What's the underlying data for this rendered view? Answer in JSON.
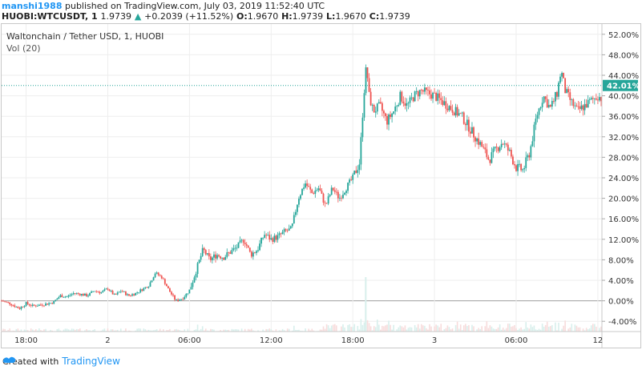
{
  "header": {
    "user": "manshi1988",
    "published": "published on TradingView.com, July 03, 2019 11:52:40 UTC",
    "symbol": "HUOBI:WTCUSDT, 1",
    "price": "1.9739",
    "change": "+0.2039 (+11.52%)",
    "o_label": "O:",
    "o_val": "1.9670",
    "h_label": "H:",
    "h_val": "1.9739",
    "l_label": "L:",
    "l_val": "1.9670",
    "c_label": "C:",
    "c_val": "1.9739"
  },
  "footer": {
    "created": "Created with",
    "brand": "TradingView"
  },
  "colors": {
    "up": "#26a69a",
    "down": "#ef5350",
    "accent": "#26a69a",
    "grid": "#eeeeee",
    "brand": "#2196f3"
  },
  "chart_data": {
    "type": "candlestick",
    "title": "Waltonchain / Tether USD, 1, HUOBI",
    "indicator": "Vol (20)",
    "y_unit": "percent",
    "ylim": [
      -6,
      54
    ],
    "y_ticks": [
      "52.00%",
      "48.00%",
      "44.00%",
      "40.00%",
      "36.00%",
      "32.00%",
      "28.00%",
      "24.00%",
      "20.00%",
      "16.00%",
      "12.00%",
      "8.00%",
      "4.00%",
      "0.00%",
      "-4.00%"
    ],
    "y_tick_values": [
      52,
      48,
      44,
      40,
      36,
      32,
      28,
      24,
      20,
      16,
      12,
      8,
      4,
      0,
      -4
    ],
    "x_ticks": [
      "18:00",
      "2",
      "06:00",
      "12:00",
      "18:00",
      "3",
      "06:00",
      "12"
    ],
    "x_tick_hours": [
      18,
      24,
      30,
      36,
      42,
      48,
      54,
      60
    ],
    "x_range_hours": [
      16.2,
      60.3
    ],
    "last_value": 42.01,
    "last_label": "42.01%",
    "price_path": [
      [
        16.2,
        0.0
      ],
      [
        16.8,
        -0.5
      ],
      [
        17.5,
        -1.5
      ],
      [
        18.0,
        -0.5
      ],
      [
        18.5,
        -1.0
      ],
      [
        19.0,
        -0.8
      ],
      [
        19.5,
        -0.6
      ],
      [
        20.0,
        -0.3
      ],
      [
        20.5,
        1.0
      ],
      [
        21.0,
        0.8
      ],
      [
        21.5,
        1.5
      ],
      [
        22.0,
        1.3
      ],
      [
        22.5,
        1.0
      ],
      [
        23.0,
        2.0
      ],
      [
        23.5,
        1.6
      ],
      [
        24.0,
        2.4
      ],
      [
        24.5,
        1.0
      ],
      [
        25.0,
        2.0
      ],
      [
        25.5,
        1.0
      ],
      [
        26.0,
        1.4
      ],
      [
        26.5,
        2.2
      ],
      [
        27.0,
        3.0
      ],
      [
        27.5,
        5.5
      ],
      [
        28.0,
        4.5
      ],
      [
        28.5,
        2.0
      ],
      [
        29.0,
        0.0
      ],
      [
        29.5,
        0.5
      ],
      [
        30.0,
        2.0
      ],
      [
        30.5,
        6.0
      ],
      [
        31.0,
        10.0
      ],
      [
        31.5,
        8.0
      ],
      [
        32.0,
        9.0
      ],
      [
        32.5,
        8.5
      ],
      [
        33.0,
        9.5
      ],
      [
        33.5,
        10.5
      ],
      [
        34.0,
        12.0
      ],
      [
        34.5,
        9.0
      ],
      [
        35.0,
        10.0
      ],
      [
        35.5,
        13.0
      ],
      [
        36.0,
        12.0
      ],
      [
        36.5,
        12.5
      ],
      [
        37.0,
        13.5
      ],
      [
        37.5,
        14.0
      ],
      [
        38.0,
        20.0
      ],
      [
        38.5,
        23.0
      ],
      [
        39.0,
        21.0
      ],
      [
        39.5,
        22.0
      ],
      [
        40.0,
        18.5
      ],
      [
        40.5,
        22.0
      ],
      [
        41.0,
        20.0
      ],
      [
        41.5,
        22.0
      ],
      [
        42.0,
        24.0
      ],
      [
        42.5,
        27.0
      ],
      [
        42.8,
        40.0
      ],
      [
        43.0,
        46.0
      ],
      [
        43.2,
        40.0
      ],
      [
        43.5,
        37.0
      ],
      [
        44.0,
        38.0
      ],
      [
        44.5,
        35.0
      ],
      [
        45.0,
        37.0
      ],
      [
        45.5,
        40.0
      ],
      [
        46.0,
        38.0
      ],
      [
        46.5,
        40.0
      ],
      [
        47.0,
        41.0
      ],
      [
        47.5,
        40.5
      ],
      [
        48.0,
        40.0
      ],
      [
        48.5,
        39.0
      ],
      [
        49.0,
        38.0
      ],
      [
        49.5,
        37.0
      ],
      [
        50.0,
        36.0
      ],
      [
        50.5,
        34.0
      ],
      [
        51.0,
        32.0
      ],
      [
        51.5,
        30.0
      ],
      [
        52.0,
        27.5
      ],
      [
        52.5,
        29.5
      ],
      [
        53.0,
        31.0
      ],
      [
        53.5,
        29.0
      ],
      [
        54.0,
        26.0
      ],
      [
        54.5,
        25.5
      ],
      [
        55.0,
        29.0
      ],
      [
        55.5,
        36.0
      ],
      [
        56.0,
        40.0
      ],
      [
        56.5,
        37.5
      ],
      [
        57.0,
        40.5
      ],
      [
        57.3,
        45.0
      ],
      [
        57.6,
        41.0
      ],
      [
        58.0,
        39.0
      ],
      [
        58.5,
        37.0
      ],
      [
        59.0,
        38.0
      ],
      [
        59.5,
        39.0
      ],
      [
        60.0,
        40.0
      ],
      [
        60.5,
        39.0
      ],
      [
        61.0,
        40.5
      ],
      [
        61.5,
        39.0
      ],
      [
        62.0,
        40.5
      ],
      [
        62.5,
        42.0
      ],
      [
        63.0,
        41.0
      ],
      [
        63.5,
        38.5
      ],
      [
        64.0,
        40.0
      ],
      [
        64.5,
        39.5
      ],
      [
        65.0,
        40.5
      ],
      [
        65.5,
        42.0
      ]
    ]
  }
}
